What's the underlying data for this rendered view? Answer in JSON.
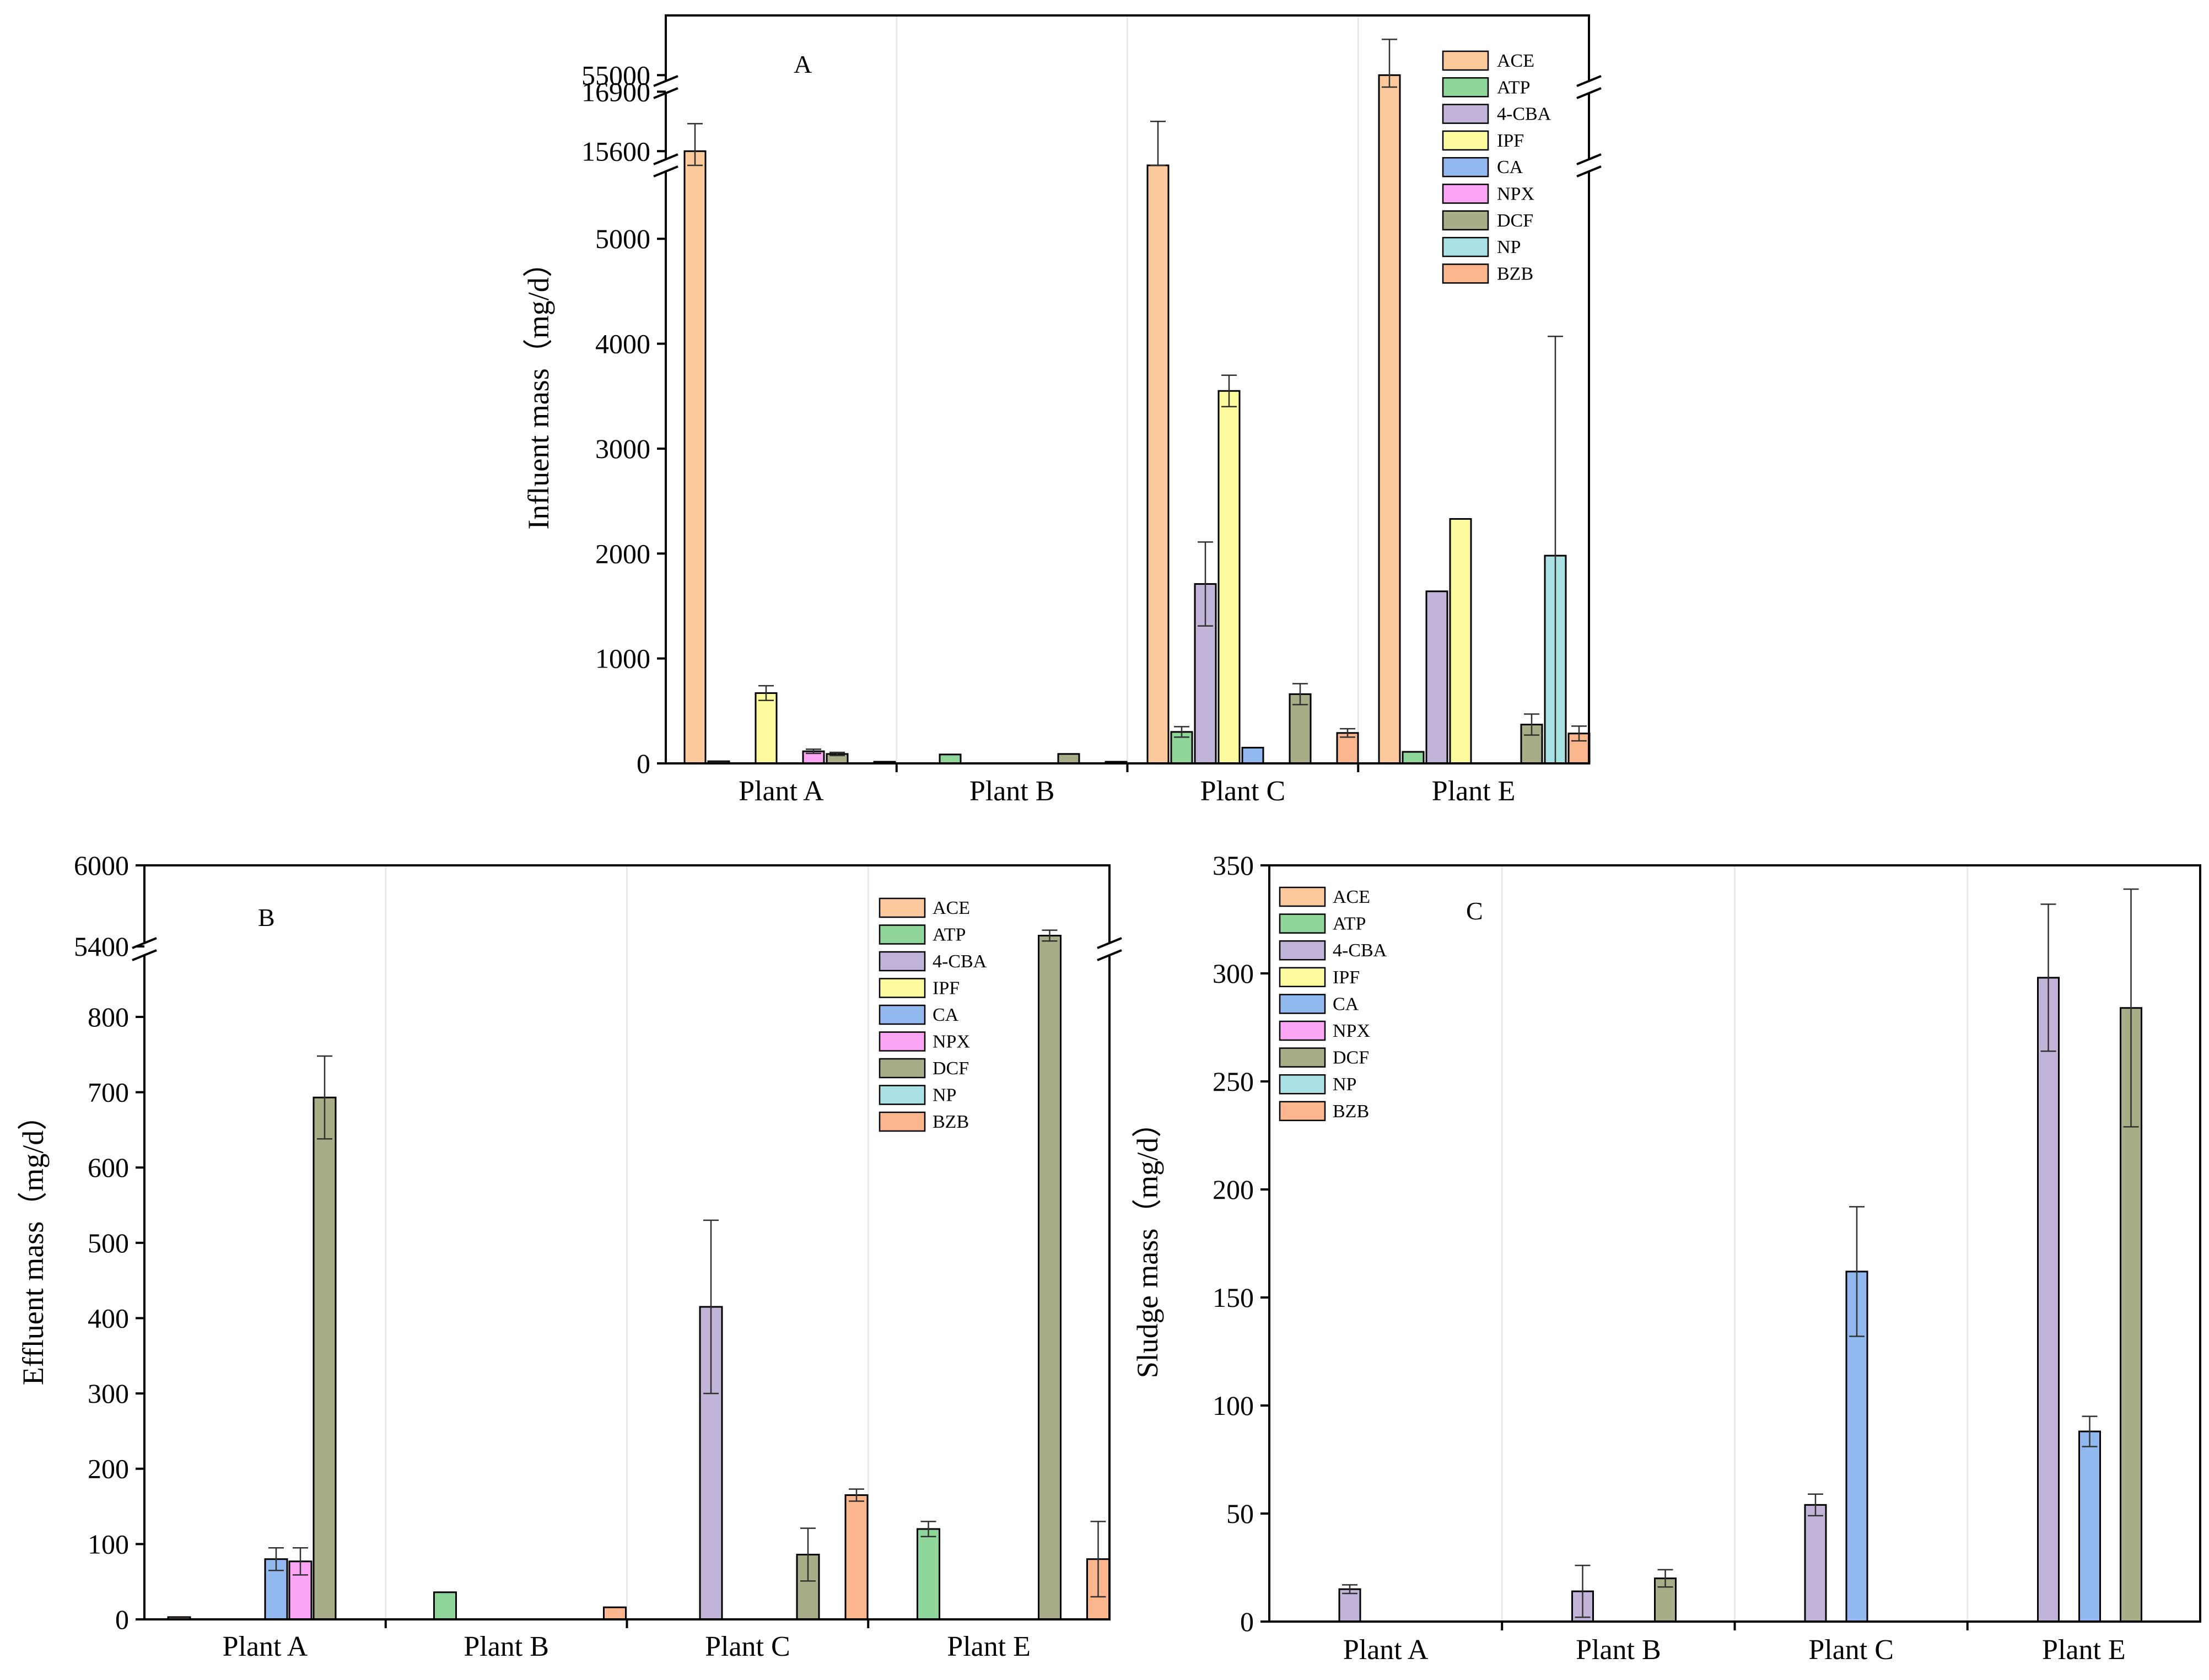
{
  "series_colors": {
    "ACE": "#fcc99c",
    "ATP": "#8ed699",
    "4-CBA": "#c2b4d8",
    "IPF": "#fcfc9e",
    "CA": "#92b8f0",
    "NPX": "#fca5f5",
    "DCF": "#a9ad87",
    "NP": "#a9e1e5",
    "BZB": "#fcb68d"
  },
  "chart_data": [
    {
      "id": "A",
      "type": "bar",
      "panel_label": "A",
      "ylabel": "Influent mass（mg/d）",
      "xlabel": "",
      "categories": [
        "Plant A",
        "Plant B",
        "Plant C",
        "Plant E"
      ],
      "legend_position": "top-right",
      "series_names": [
        "ACE",
        "ATP",
        "4-CBA",
        "IPF",
        "CA",
        "NPX",
        "DCF",
        "NP",
        "BZB"
      ],
      "y_axis_segments": [
        {
          "range": [
            0,
            5700
          ],
          "ticks": [
            0,
            1000,
            2000,
            3000,
            4000,
            5000
          ]
        },
        {
          "range": [
            15290,
            17000
          ],
          "ticks": [
            15600,
            16900
          ]
        },
        {
          "range": [
            54900,
            55500
          ],
          "ticks": [
            55000
          ]
        }
      ],
      "values": {
        "Plant A": {
          "ACE": 15600,
          "ATP": 20,
          "IPF": 670,
          "NPX": 115,
          "DCF": 90,
          "BZB": 15
        },
        "Plant B": {
          "ATP": 85,
          "DCF": 90,
          "BZB": 10
        },
        "Plant C": {
          "ACE": 15250,
          "ATP": 300,
          "4-CBA": 1710,
          "IPF": 3550,
          "CA": 150,
          "DCF": 660,
          "BZB": 290
        },
        "Plant E": {
          "ACE": 55000,
          "ATP": 110,
          "4-CBA": 1640,
          "IPF": 2330,
          "DCF": 370,
          "NP": 1980,
          "BZB": 285
        }
      },
      "errors": {
        "Plant A": {
          "ACE": 600,
          "IPF": 70,
          "NPX": 20,
          "DCF": 15
        },
        "Plant C": {
          "ACE": 1000,
          "ATP": 50,
          "4-CBA": 400,
          "IPF": 150,
          "DCF": 100,
          "BZB": 40
        },
        "Plant E": {
          "ACE": 300,
          "DCF": 100,
          "NP": 2090,
          "BZB": 70
        }
      }
    },
    {
      "id": "B",
      "type": "bar",
      "panel_label": "B",
      "ylabel": "Effluent mass（mg/d）",
      "xlabel": "",
      "categories": [
        "Plant A",
        "Plant B",
        "Plant C",
        "Plant E"
      ],
      "legend_position": "top-right",
      "series_names": [
        "ACE",
        "ATP",
        "4-CBA",
        "IPF",
        "CA",
        "NPX",
        "DCF",
        "NP",
        "BZB"
      ],
      "y_axis_segments": [
        {
          "range": [
            0,
            890
          ],
          "ticks": [
            0,
            100,
            200,
            300,
            400,
            500,
            600,
            700,
            800
          ]
        },
        {
          "range": [
            5380,
            6000
          ],
          "ticks": [
            5400,
            6000
          ]
        }
      ],
      "values": {
        "Plant A": {
          "ACE": 3,
          "CA": 80,
          "NPX": 77,
          "DCF": 693
        },
        "Plant B": {
          "ATP": 36,
          "BZB": 16
        },
        "Plant C": {
          "4-CBA": 415,
          "DCF": 86,
          "BZB": 165
        },
        "Plant E": {
          "ATP": 120,
          "DCF": 5480,
          "BZB": 80
        }
      },
      "errors": {
        "Plant A": {
          "CA": 15,
          "NPX": 18,
          "DCF": 55
        },
        "Plant C": {
          "4-CBA": 115,
          "DCF": 35,
          "BZB": 8
        },
        "Plant E": {
          "ATP": 10,
          "DCF": 40,
          "BZB": 50
        }
      }
    },
    {
      "id": "C",
      "type": "bar",
      "panel_label": "C",
      "ylabel": "Sludge mass（mg/d）",
      "xlabel": "",
      "categories": [
        "Plant A",
        "Plant B",
        "Plant C",
        "Plant E"
      ],
      "legend_position": "top-left",
      "series_names": [
        "ACE",
        "ATP",
        "4-CBA",
        "IPF",
        "CA",
        "NPX",
        "DCF",
        "NP",
        "BZB"
      ],
      "y_axis_segments": [
        {
          "range": [
            0,
            350
          ],
          "ticks": [
            0,
            50,
            100,
            150,
            200,
            250,
            300,
            350
          ]
        }
      ],
      "values": {
        "Plant A": {
          "4-CBA": 15
        },
        "Plant B": {
          "4-CBA": 14,
          "DCF": 20
        },
        "Plant C": {
          "4-CBA": 54,
          "CA": 162
        },
        "Plant E": {
          "4-CBA": 298,
          "CA": 88,
          "DCF": 284
        }
      },
      "errors": {
        "Plant A": {
          "4-CBA": 2
        },
        "Plant B": {
          "4-CBA": 12,
          "DCF": 4
        },
        "Plant C": {
          "4-CBA": 5,
          "CA": 30
        },
        "Plant E": {
          "4-CBA": 34,
          "CA": 7,
          "DCF": 55
        }
      }
    }
  ]
}
